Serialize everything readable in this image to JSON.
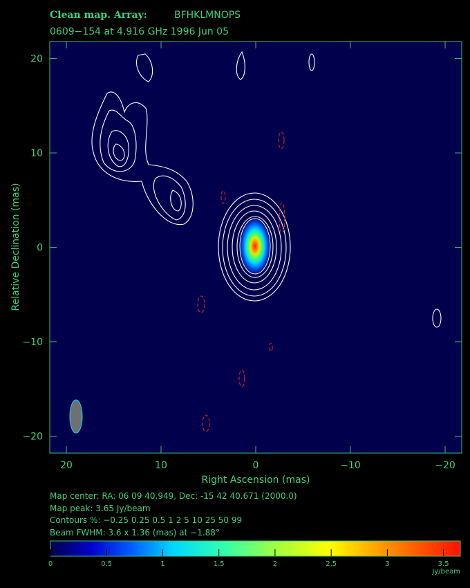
{
  "chart_data": {
    "type": "contour",
    "title": "Clean map.  Array:",
    "array": "BFHKLMNOPS",
    "subtitle": "0609−154 at 4.916 GHz 1996 Jun 05",
    "xlabel": "Right Ascension  (mas)",
    "ylabel": "Relative Declination  (mas)",
    "xlim": [
      21.75,
      -21.75
    ],
    "ylim": [
      -21.8,
      21.8
    ],
    "xticks": [
      20,
      10,
      0,
      {
        "value": -10,
        "label": "−10"
      },
      {
        "value": -20,
        "label": "−20"
      }
    ],
    "yticks": [
      20,
      10,
      0,
      {
        "value": -10,
        "label": "−10"
      },
      {
        "value": -20,
        "label": "−20"
      }
    ],
    "notes": [
      "Map center:  RA: 06 09 40.949,  Dec: -15 42 40.671 (2000.0)",
      "Map peak: 3.65 Jy/beam",
      "Contours %: −0.25 0.25 0.5 1 2 5 10 25 50 99",
      "Beam FWHM: 3.6 x 1.36 (mas) at −1.88°"
    ],
    "colorbar_lim": [
      0,
      3.65
    ],
    "colorbar_ticks": [
      0,
      0.5,
      1,
      1.5,
      2,
      2.5,
      3,
      3.5
    ],
    "colorbar_label": "Jy/beam"
  }
}
